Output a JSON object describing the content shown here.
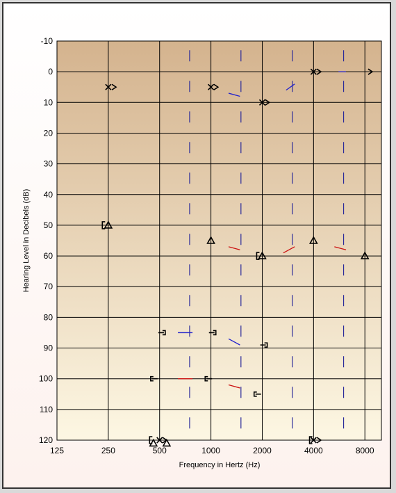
{
  "chart_data": {
    "type": "scatter",
    "xlabel": "Frequency in Hertz (Hz)",
    "ylabel": "Hearing Level in Decibels (dB)",
    "x_scale": "log2",
    "xlim": [
      125,
      10000
    ],
    "ylim": [
      -10,
      120
    ],
    "y_inverted": true,
    "grid": true,
    "x_ticks": [
      "125",
      "250",
      "500",
      "1000",
      "2000",
      "4000",
      "8000"
    ],
    "x_tick_values": [
      125,
      250,
      500,
      1000,
      2000,
      4000,
      8000
    ],
    "y_ticks": [
      "-10",
      "0",
      "10",
      "20",
      "30",
      "40",
      "50",
      "60",
      "70",
      "80",
      "90",
      "100",
      "110",
      "120"
    ],
    "y_tick_values": [
      -10,
      0,
      10,
      20,
      30,
      40,
      50,
      60,
      70,
      80,
      90,
      100,
      110,
      120
    ],
    "intermediate_frequencies": [
      750,
      1500,
      3000,
      6000
    ],
    "colors": {
      "grid": "#000000",
      "intermediate": "#2a2a9a",
      "right": "#cc1111",
      "left": "#2222cc",
      "symbol": "#000000",
      "bg_top": "#d4b38e",
      "bg_bottom": "#fdf7e3"
    },
    "series": [
      {
        "symbol": "x-cross",
        "points": [
          [
            250,
            5
          ],
          [
            1000,
            5
          ],
          [
            2000,
            10
          ],
          [
            4000,
            0
          ]
        ]
      },
      {
        "symbol": "chevron-right",
        "points": [
          [
            270,
            5
          ],
          [
            1070,
            5
          ],
          [
            2140,
            10
          ],
          [
            4300,
            0
          ],
          [
            8600,
            0
          ]
        ]
      },
      {
        "symbol": "bracket-left",
        "points": [
          [
            235,
            50
          ],
          [
            1890,
            60
          ]
        ]
      },
      {
        "symbol": "triangle",
        "points": [
          [
            250,
            50
          ],
          [
            1000,
            55
          ],
          [
            2000,
            60
          ],
          [
            4000,
            55
          ],
          [
            8000,
            60
          ]
        ]
      },
      {
        "symbol": "masking-right",
        "points": [
          [
            520,
            85
          ],
          [
            1030,
            85
          ],
          [
            2060,
            89
          ]
        ]
      },
      {
        "symbol": "masking-left",
        "points": [
          [
            460,
            100
          ],
          [
            960,
            100
          ],
          [
            1860,
            105
          ]
        ]
      },
      {
        "symbol": "x-cross",
        "points": [
          [
            500,
            120
          ],
          [
            4000,
            120
          ]
        ]
      },
      {
        "symbol": "bracket-left",
        "points": [
          [
            445,
            120
          ],
          [
            3860,
            120
          ]
        ]
      },
      {
        "symbol": "chevron-right",
        "points": [
          [
            535,
            120
          ],
          [
            4300,
            120
          ]
        ]
      },
      {
        "symbol": "triangle",
        "points": [
          [
            460,
            121
          ],
          [
            550,
            121
          ]
        ]
      }
    ],
    "connectors": [
      {
        "color": "left",
        "points": [
          [
            1270,
            7
          ],
          [
            1480,
            8
          ]
        ]
      },
      {
        "color": "left",
        "points": [
          [
            2760,
            6
          ],
          [
            3100,
            4
          ]
        ]
      },
      {
        "color": "left",
        "points": [
          [
            5600,
            0
          ],
          [
            6200,
            0
          ]
        ]
      },
      {
        "color": "right",
        "points": [
          [
            1270,
            57
          ],
          [
            1480,
            58
          ]
        ]
      },
      {
        "color": "right",
        "points": [
          [
            2660,
            59
          ],
          [
            3100,
            57
          ]
        ]
      },
      {
        "color": "right",
        "points": [
          [
            5300,
            57
          ],
          [
            6200,
            58
          ]
        ]
      },
      {
        "color": "left",
        "points": [
          [
            640,
            85
          ],
          [
            780,
            85
          ]
        ]
      },
      {
        "color": "left",
        "points": [
          [
            1270,
            87
          ],
          [
            1480,
            89
          ]
        ]
      },
      {
        "color": "right",
        "points": [
          [
            640,
            100
          ],
          [
            780,
            100
          ]
        ]
      },
      {
        "color": "right",
        "points": [
          [
            1270,
            102
          ],
          [
            1480,
            103
          ]
        ]
      }
    ]
  }
}
